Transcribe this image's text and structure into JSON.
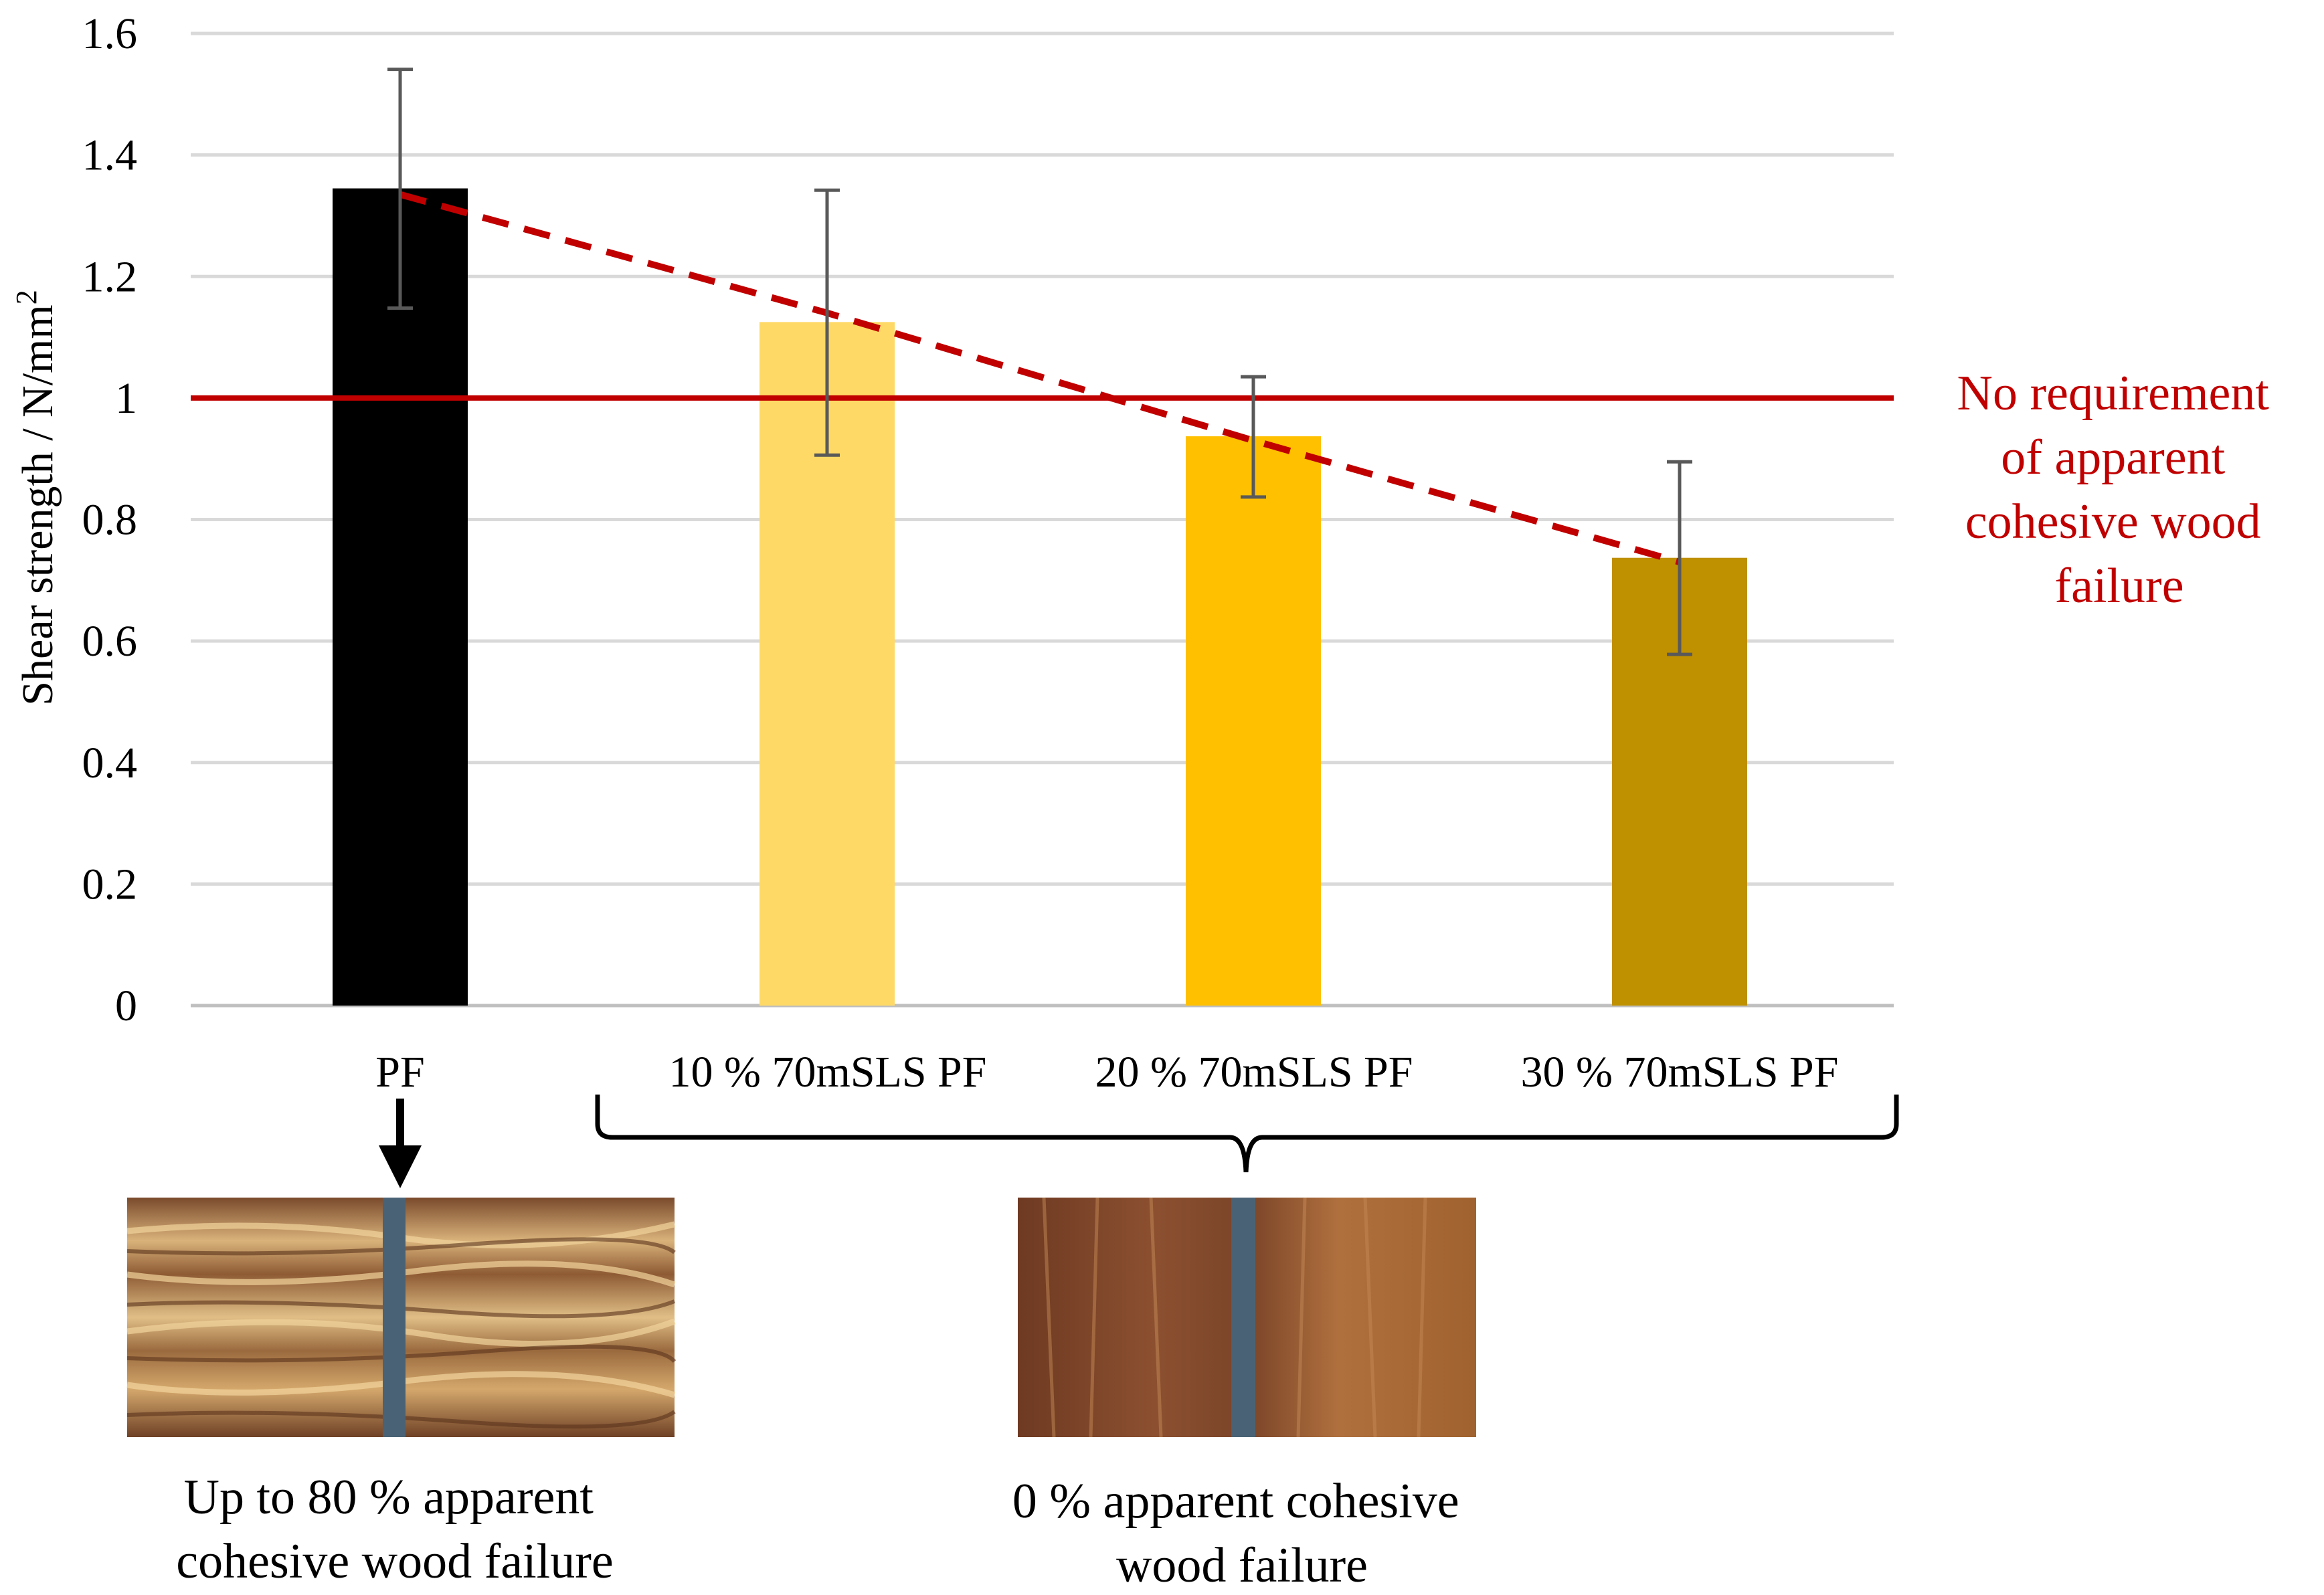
{
  "chart_data": {
    "type": "bar",
    "title": "",
    "xlabel": "",
    "ylabel": "Shear strength / N/mm",
    "ylabel_superscript": "2",
    "ylim": [
      0,
      1.6
    ],
    "yticks": [
      0,
      0.2,
      0.4,
      0.6,
      0.8,
      1.0,
      1.2,
      1.4,
      1.6
    ],
    "ytick_labels": [
      "0",
      "0.2",
      "0.4",
      "0.6",
      "0.8",
      "1",
      "1.2",
      "1.4",
      "1.6"
    ],
    "grid": true,
    "categories": [
      "PF",
      "10 % 70mSLS PF",
      "20 % 70mSLS PF",
      "30 % 70mSLS PF"
    ],
    "values": [
      1.345,
      1.125,
      0.937,
      0.737
    ],
    "error_low": [
      1.148,
      0.906,
      0.837,
      0.578
    ],
    "error_high": [
      1.541,
      1.342,
      1.035,
      0.895
    ],
    "bar_colors": [
      "#000000",
      "#FFD966",
      "#FFC000",
      "#BF9000"
    ],
    "trend_line": {
      "style": "dashed",
      "color": "#C00000",
      "values": [
        1.335,
        1.14,
        0.93,
        0.73
      ]
    },
    "reference_line": {
      "value": 1.0,
      "color": "#C00000",
      "label_lines": [
        "No requirement",
        "of apparent",
        "cohesive wood",
        "failure"
      ]
    }
  },
  "captions": {
    "left": [
      "Up to 80 % apparent",
      "cohesive wood failure"
    ],
    "right": [
      "0 % apparent cohesive",
      "wood failure"
    ]
  },
  "colors": {
    "grid": "#D9D9D9",
    "axis": "#BFBFBF",
    "error_bar": "#595959",
    "accent": "#C00000",
    "photo_left": "#B58A58",
    "photo_right": "#8A5030",
    "glue_line": "#4A6275"
  }
}
